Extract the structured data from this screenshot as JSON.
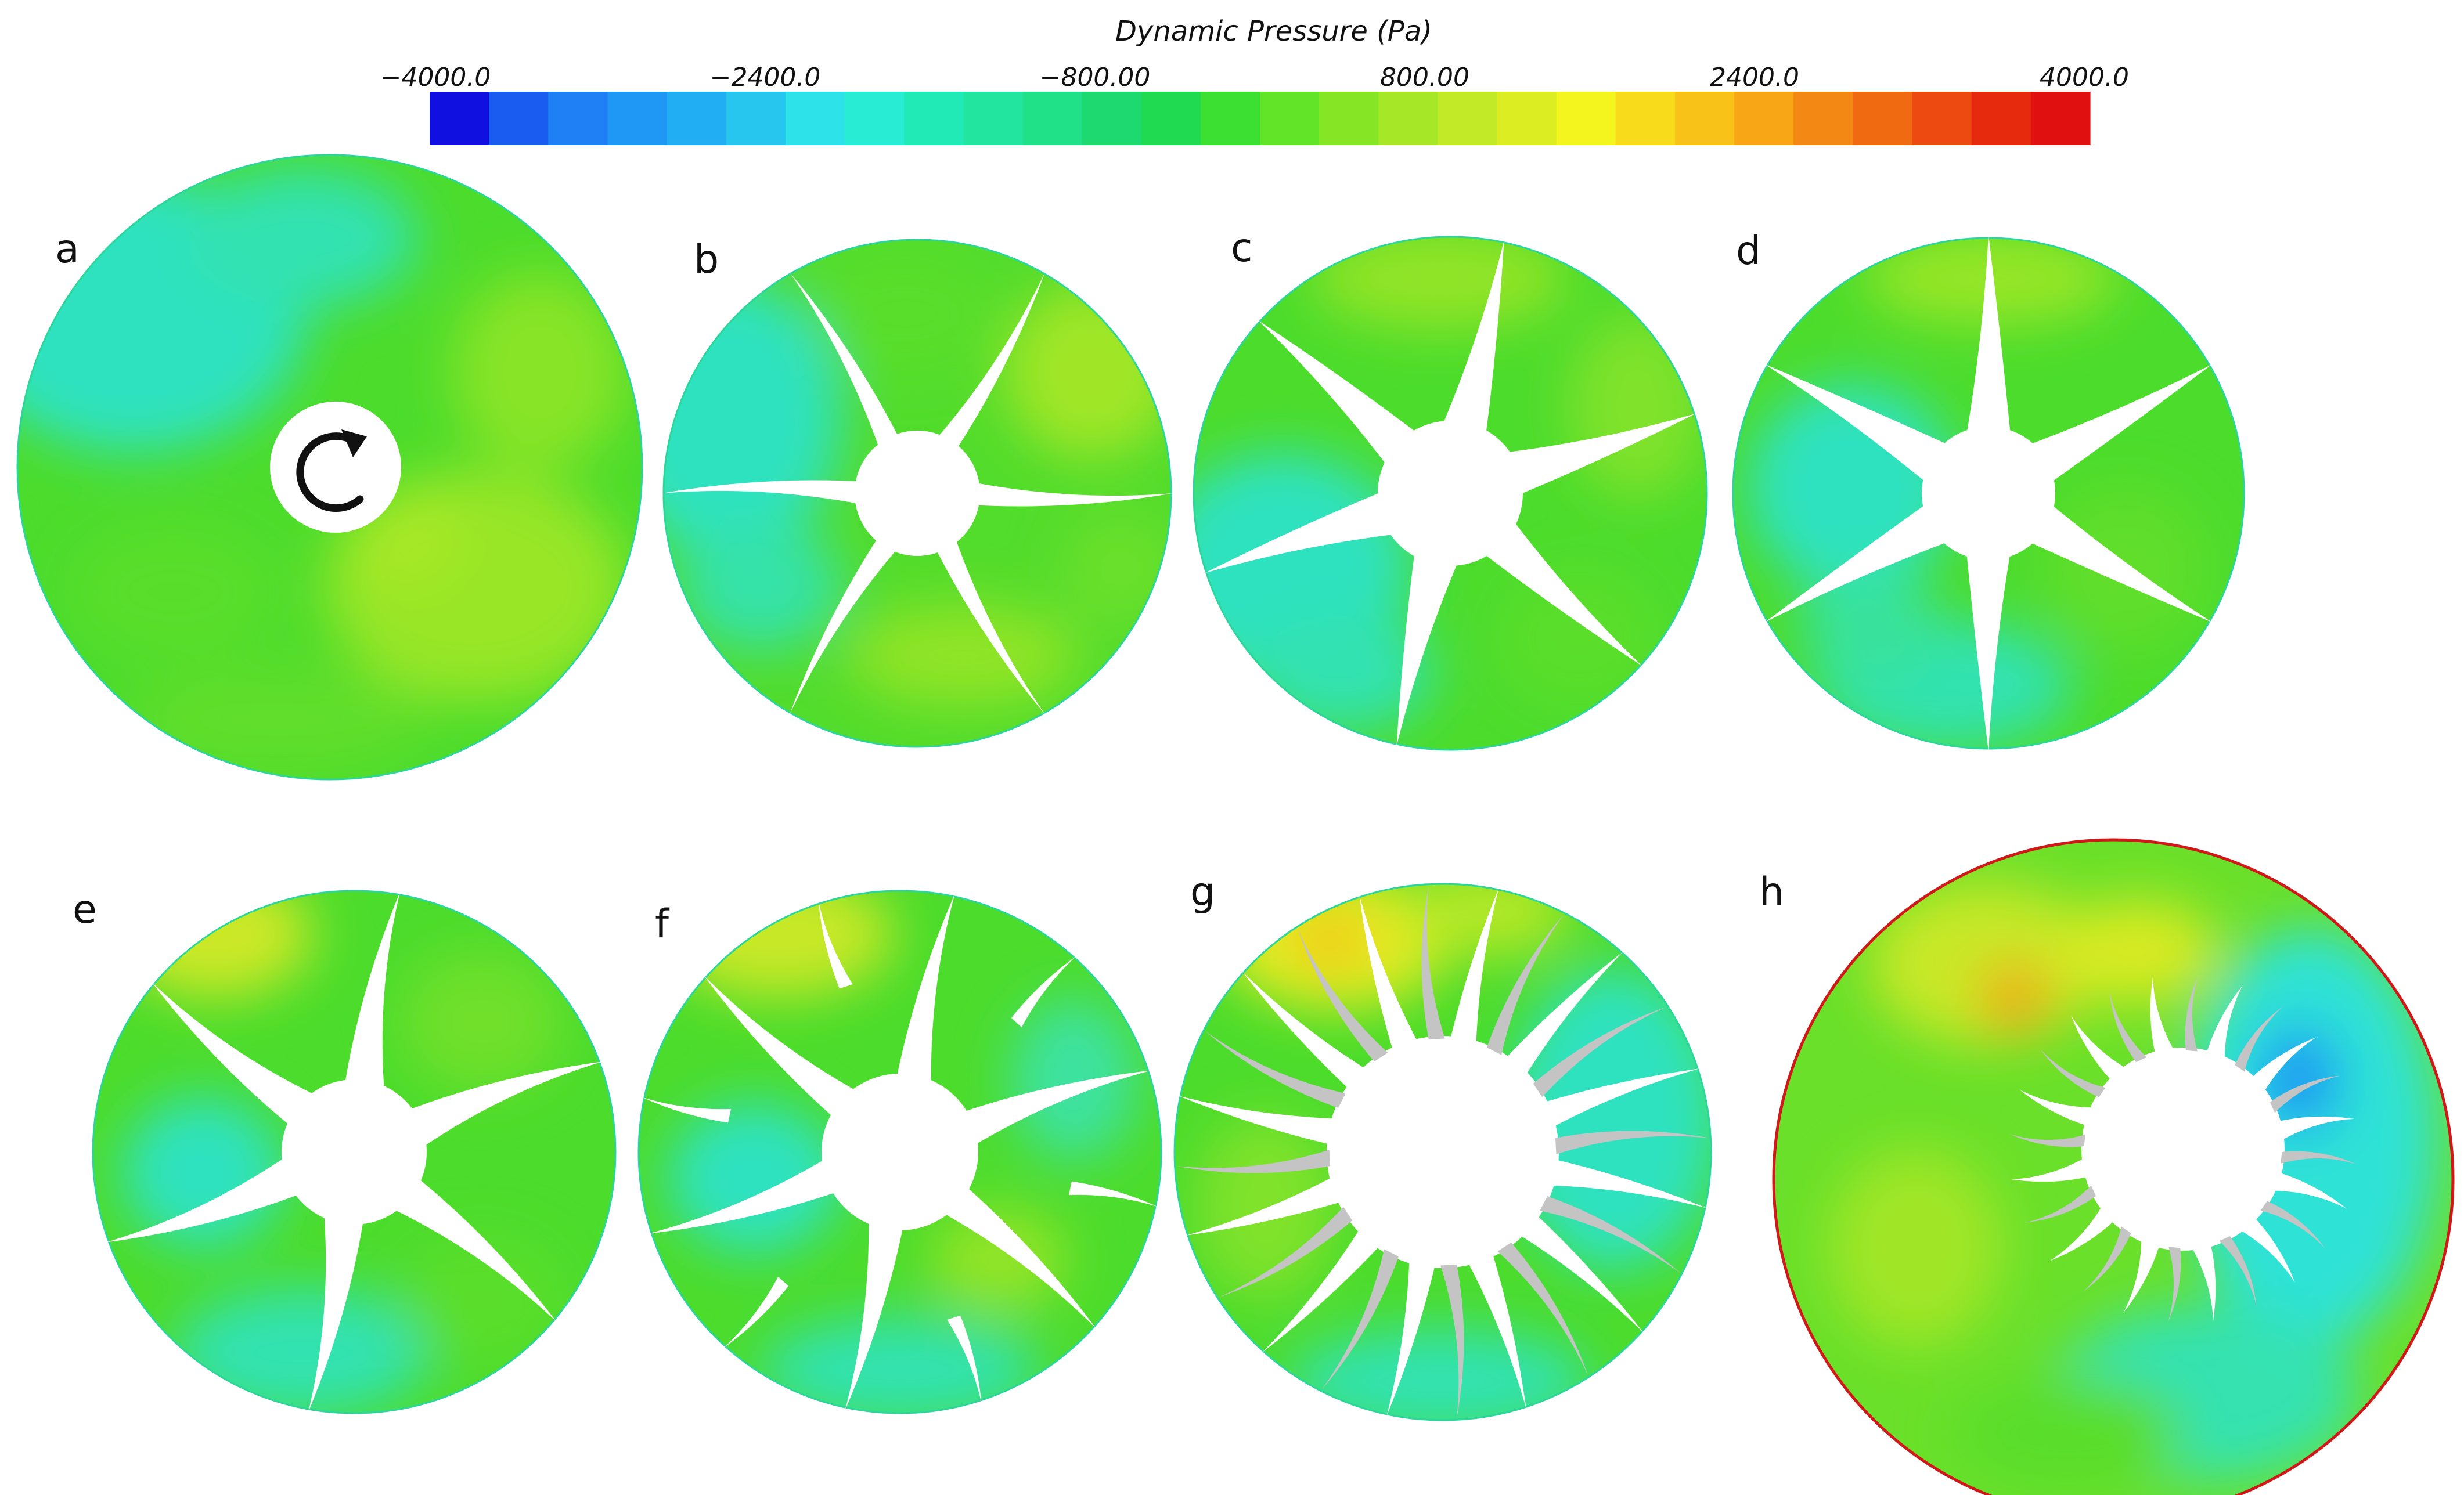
{
  "colorbar": {
    "title": "Dynamic Pressure (Pa)",
    "ticks": [
      "−4000.0",
      "−2400.0",
      "−800.00",
      "800.00",
      "2400.0",
      "4000.0"
    ],
    "colors": [
      "#1010e0",
      "#1a5cf0",
      "#1f7ff4",
      "#1f97f4",
      "#22aef2",
      "#26c6ee",
      "#2ee2ea",
      "#28ecd4",
      "#22eab6",
      "#22e6a0",
      "#20e088",
      "#1ed870",
      "#20da52",
      "#3ce032",
      "#62e428",
      "#86e626",
      "#a6e828",
      "#c2ea26",
      "#dcee22",
      "#f4f41e",
      "#f8dc1c",
      "#f8c218",
      "#f8a616",
      "#f48814",
      "#f06a12",
      "#ec4a10",
      "#e62a0e",
      "#e01010"
    ]
  },
  "panels": [
    {
      "label": "a",
      "blades": 0,
      "style": "none"
    },
    {
      "label": "b",
      "blades": 6,
      "style": "thin-curved"
    },
    {
      "label": "c",
      "blades": 6,
      "style": "star"
    },
    {
      "label": "d",
      "blades": 6,
      "style": "star"
    },
    {
      "label": "e",
      "blades": 6,
      "style": "star-curved"
    },
    {
      "label": "f",
      "blades": 12,
      "style": "split"
    },
    {
      "label": "g",
      "blades": 12,
      "style": "gray-curved"
    },
    {
      "label": "h",
      "blades": 12,
      "style": "gray-curved-small"
    }
  ],
  "colors": {
    "field_green": "#4cdc2c",
    "field_lime": "#98e628",
    "field_cyan": "#2ee2c8",
    "field_yellow": "#e4ec22",
    "blade_gray": "#c4c4c4",
    "outline_red": "#d01818"
  },
  "icons": {
    "rotation": "clockwise-arrow-icon"
  }
}
